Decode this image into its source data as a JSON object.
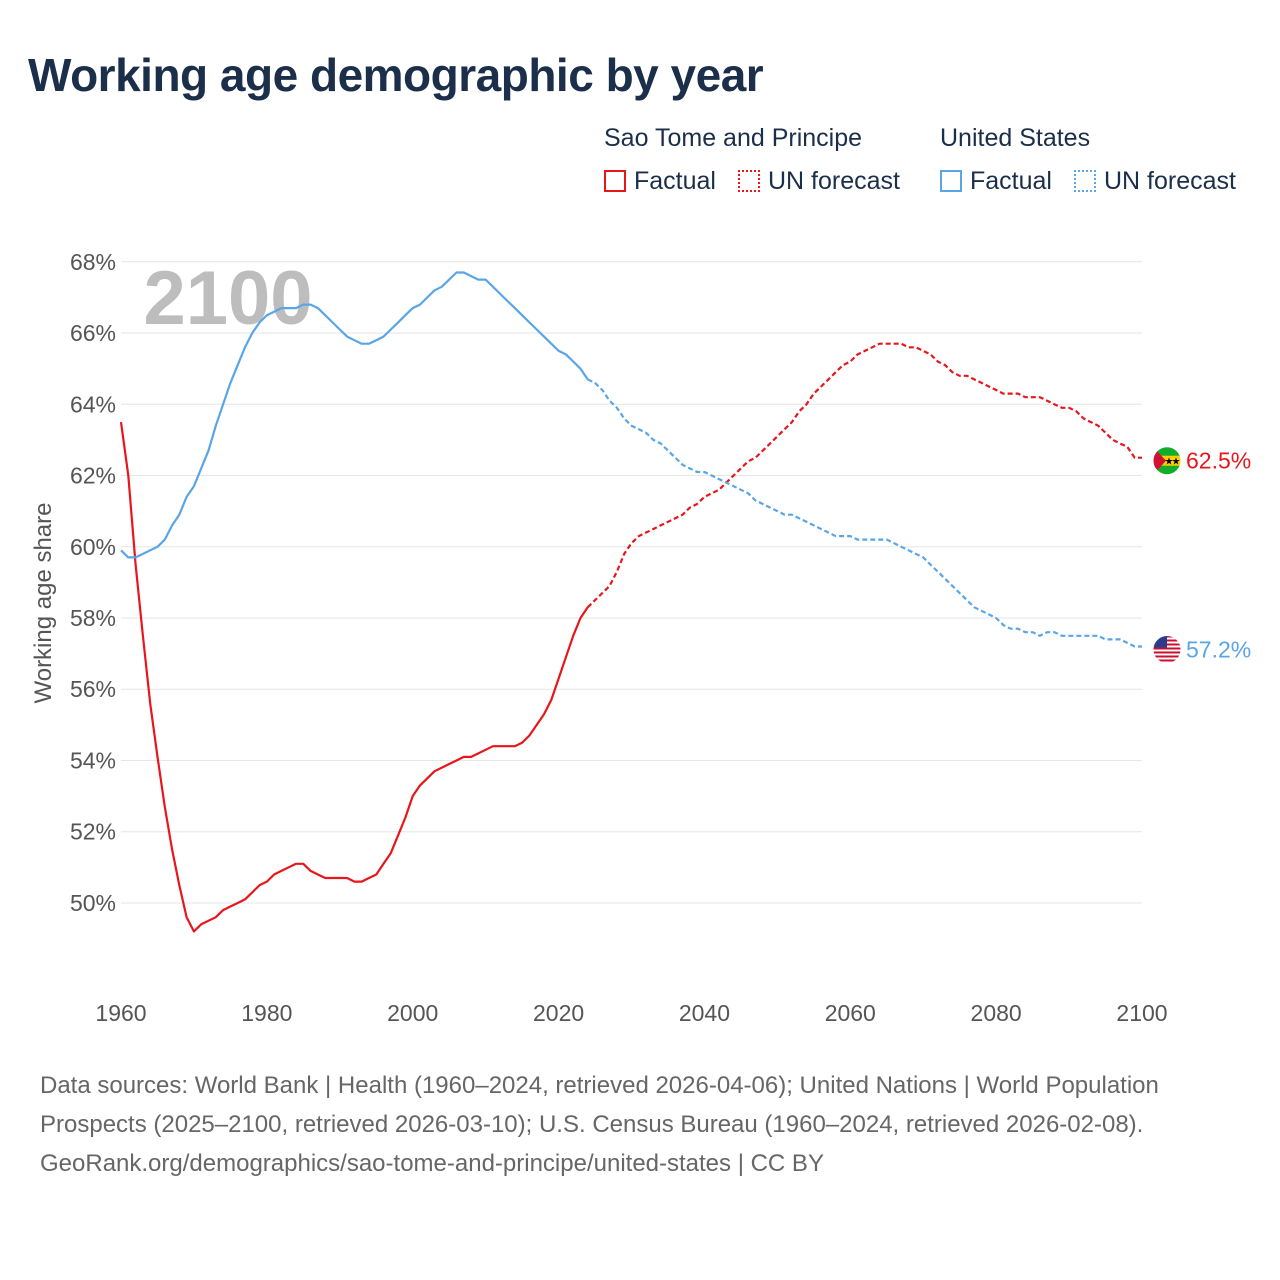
{
  "title": "Working age demographic by year",
  "legend": {
    "groups": [
      {
        "name": "Sao Tome and Principe",
        "color": "#e8161b",
        "factual_label": "Factual",
        "forecast_label": "UN forecast"
      },
      {
        "name": "United States",
        "color": "#5aa5e6",
        "factual_label": "Factual",
        "forecast_label": "UN forecast"
      }
    ]
  },
  "year_watermark": "2100",
  "footer": {
    "sources": "Data sources: World Bank | Health (1960–2024, retrieved 2026-04-06); United Nations | World Population Prospects (2025–2100, retrieved 2026-03-10); U.S. Census Bureau (1960–2024, retrieved 2026-02-08).",
    "link": "GeoRank.org/demographics/sao-tome-and-principe/united-states | CC BY"
  },
  "chart_data": {
    "type": "line",
    "title": "Working age demographic by year",
    "xlabel": "",
    "ylabel": "Working age share",
    "xlim": [
      1960,
      2100
    ],
    "ylim": [
      47.5,
      68.5
    ],
    "x_ticks": [
      1960,
      1980,
      2000,
      2020,
      2040,
      2060,
      2080,
      2100
    ],
    "y_ticks": [
      50,
      52,
      54,
      56,
      58,
      60,
      62,
      64,
      66,
      68
    ],
    "y_tick_suffix": "%",
    "grid": true,
    "factual_end_year": 2024,
    "series": [
      {
        "name": "Sao Tome and Principe",
        "color": "#e8161b",
        "end_label": "62.5%",
        "flag": "sao-tome-and-principe-flag",
        "points": [
          [
            1960,
            63.5
          ],
          [
            1961,
            62.0
          ],
          [
            1962,
            59.5
          ],
          [
            1963,
            57.5
          ],
          [
            1964,
            55.6
          ],
          [
            1965,
            54.1
          ],
          [
            1966,
            52.7
          ],
          [
            1967,
            51.5
          ],
          [
            1968,
            50.5
          ],
          [
            1969,
            49.6
          ],
          [
            1970,
            49.2
          ],
          [
            1971,
            49.4
          ],
          [
            1972,
            49.5
          ],
          [
            1973,
            49.6
          ],
          [
            1974,
            49.8
          ],
          [
            1975,
            49.9
          ],
          [
            1976,
            50.0
          ],
          [
            1977,
            50.1
          ],
          [
            1978,
            50.3
          ],
          [
            1979,
            50.5
          ],
          [
            1980,
            50.6
          ],
          [
            1981,
            50.8
          ],
          [
            1982,
            50.9
          ],
          [
            1983,
            51.0
          ],
          [
            1984,
            51.1
          ],
          [
            1985,
            51.1
          ],
          [
            1986,
            50.9
          ],
          [
            1987,
            50.8
          ],
          [
            1988,
            50.7
          ],
          [
            1989,
            50.7
          ],
          [
            1990,
            50.7
          ],
          [
            1991,
            50.7
          ],
          [
            1992,
            50.6
          ],
          [
            1993,
            50.6
          ],
          [
            1994,
            50.7
          ],
          [
            1995,
            50.8
          ],
          [
            1996,
            51.1
          ],
          [
            1997,
            51.4
          ],
          [
            1998,
            51.9
          ],
          [
            1999,
            52.4
          ],
          [
            2000,
            53.0
          ],
          [
            2001,
            53.3
          ],
          [
            2002,
            53.5
          ],
          [
            2003,
            53.7
          ],
          [
            2004,
            53.8
          ],
          [
            2005,
            53.9
          ],
          [
            2006,
            54.0
          ],
          [
            2007,
            54.1
          ],
          [
            2008,
            54.1
          ],
          [
            2009,
            54.2
          ],
          [
            2010,
            54.3
          ],
          [
            2011,
            54.4
          ],
          [
            2012,
            54.4
          ],
          [
            2013,
            54.4
          ],
          [
            2014,
            54.4
          ],
          [
            2015,
            54.5
          ],
          [
            2016,
            54.7
          ],
          [
            2017,
            55.0
          ],
          [
            2018,
            55.3
          ],
          [
            2019,
            55.7
          ],
          [
            2020,
            56.3
          ],
          [
            2021,
            56.9
          ],
          [
            2022,
            57.5
          ],
          [
            2023,
            58.0
          ],
          [
            2024,
            58.3
          ],
          [
            2025,
            58.5
          ],
          [
            2026,
            58.7
          ],
          [
            2027,
            58.9
          ],
          [
            2028,
            59.3
          ],
          [
            2029,
            59.8
          ],
          [
            2030,
            60.1
          ],
          [
            2031,
            60.3
          ],
          [
            2032,
            60.4
          ],
          [
            2033,
            60.5
          ],
          [
            2034,
            60.6
          ],
          [
            2035,
            60.7
          ],
          [
            2036,
            60.8
          ],
          [
            2037,
            60.9
          ],
          [
            2038,
            61.1
          ],
          [
            2039,
            61.2
          ],
          [
            2040,
            61.4
          ],
          [
            2041,
            61.5
          ],
          [
            2042,
            61.6
          ],
          [
            2043,
            61.8
          ],
          [
            2044,
            62.0
          ],
          [
            2045,
            62.2
          ],
          [
            2046,
            62.4
          ],
          [
            2047,
            62.5
          ],
          [
            2048,
            62.7
          ],
          [
            2049,
            62.9
          ],
          [
            2050,
            63.1
          ],
          [
            2051,
            63.3
          ],
          [
            2052,
            63.5
          ],
          [
            2053,
            63.8
          ],
          [
            2054,
            64.0
          ],
          [
            2055,
            64.3
          ],
          [
            2056,
            64.5
          ],
          [
            2057,
            64.7
          ],
          [
            2058,
            64.9
          ],
          [
            2059,
            65.1
          ],
          [
            2060,
            65.2
          ],
          [
            2061,
            65.4
          ],
          [
            2062,
            65.5
          ],
          [
            2063,
            65.6
          ],
          [
            2064,
            65.7
          ],
          [
            2065,
            65.7
          ],
          [
            2066,
            65.7
          ],
          [
            2067,
            65.7
          ],
          [
            2068,
            65.6
          ],
          [
            2069,
            65.6
          ],
          [
            2070,
            65.5
          ],
          [
            2071,
            65.4
          ],
          [
            2072,
            65.2
          ],
          [
            2073,
            65.1
          ],
          [
            2074,
            64.9
          ],
          [
            2075,
            64.8
          ],
          [
            2076,
            64.8
          ],
          [
            2077,
            64.7
          ],
          [
            2078,
            64.6
          ],
          [
            2079,
            64.5
          ],
          [
            2080,
            64.4
          ],
          [
            2081,
            64.3
          ],
          [
            2082,
            64.3
          ],
          [
            2083,
            64.3
          ],
          [
            2084,
            64.2
          ],
          [
            2085,
            64.2
          ],
          [
            2086,
            64.2
          ],
          [
            2087,
            64.1
          ],
          [
            2088,
            64.0
          ],
          [
            2089,
            63.9
          ],
          [
            2090,
            63.9
          ],
          [
            2091,
            63.8
          ],
          [
            2092,
            63.6
          ],
          [
            2093,
            63.5
          ],
          [
            2094,
            63.4
          ],
          [
            2095,
            63.2
          ],
          [
            2096,
            63.0
          ],
          [
            2097,
            62.9
          ],
          [
            2098,
            62.8
          ],
          [
            2099,
            62.5
          ],
          [
            2100,
            62.5
          ]
        ]
      },
      {
        "name": "United States",
        "color": "#5aa5e6",
        "end_label": "57.2%",
        "flag": "united-states-flag",
        "points": [
          [
            1960,
            59.9
          ],
          [
            1961,
            59.7
          ],
          [
            1962,
            59.7
          ],
          [
            1963,
            59.8
          ],
          [
            1964,
            59.9
          ],
          [
            1965,
            60.0
          ],
          [
            1966,
            60.2
          ],
          [
            1967,
            60.6
          ],
          [
            1968,
            60.9
          ],
          [
            1969,
            61.4
          ],
          [
            1970,
            61.7
          ],
          [
            1971,
            62.2
          ],
          [
            1972,
            62.7
          ],
          [
            1973,
            63.4
          ],
          [
            1974,
            64.0
          ],
          [
            1975,
            64.6
          ],
          [
            1976,
            65.1
          ],
          [
            1977,
            65.6
          ],
          [
            1978,
            66.0
          ],
          [
            1979,
            66.3
          ],
          [
            1980,
            66.5
          ],
          [
            1981,
            66.6
          ],
          [
            1982,
            66.7
          ],
          [
            1983,
            66.7
          ],
          [
            1984,
            66.7
          ],
          [
            1985,
            66.8
          ],
          [
            1986,
            66.8
          ],
          [
            1987,
            66.7
          ],
          [
            1988,
            66.5
          ],
          [
            1989,
            66.3
          ],
          [
            1990,
            66.1
          ],
          [
            1991,
            65.9
          ],
          [
            1992,
            65.8
          ],
          [
            1993,
            65.7
          ],
          [
            1994,
            65.7
          ],
          [
            1995,
            65.8
          ],
          [
            1996,
            65.9
          ],
          [
            1997,
            66.1
          ],
          [
            1998,
            66.3
          ],
          [
            1999,
            66.5
          ],
          [
            2000,
            66.7
          ],
          [
            2001,
            66.8
          ],
          [
            2002,
            67.0
          ],
          [
            2003,
            67.2
          ],
          [
            2004,
            67.3
          ],
          [
            2005,
            67.5
          ],
          [
            2006,
            67.7
          ],
          [
            2007,
            67.7
          ],
          [
            2008,
            67.6
          ],
          [
            2009,
            67.5
          ],
          [
            2010,
            67.5
          ],
          [
            2011,
            67.3
          ],
          [
            2012,
            67.1
          ],
          [
            2013,
            66.9
          ],
          [
            2014,
            66.7
          ],
          [
            2015,
            66.5
          ],
          [
            2016,
            66.3
          ],
          [
            2017,
            66.1
          ],
          [
            2018,
            65.9
          ],
          [
            2019,
            65.7
          ],
          [
            2020,
            65.5
          ],
          [
            2021,
            65.4
          ],
          [
            2022,
            65.2
          ],
          [
            2023,
            65.0
          ],
          [
            2024,
            64.7
          ],
          [
            2025,
            64.6
          ],
          [
            2026,
            64.4
          ],
          [
            2027,
            64.1
          ],
          [
            2028,
            63.9
          ],
          [
            2029,
            63.6
          ],
          [
            2030,
            63.4
          ],
          [
            2031,
            63.3
          ],
          [
            2032,
            63.2
          ],
          [
            2033,
            63.0
          ],
          [
            2034,
            62.9
          ],
          [
            2035,
            62.7
          ],
          [
            2036,
            62.5
          ],
          [
            2037,
            62.3
          ],
          [
            2038,
            62.2
          ],
          [
            2039,
            62.1
          ],
          [
            2040,
            62.1
          ],
          [
            2041,
            62.0
          ],
          [
            2042,
            61.9
          ],
          [
            2043,
            61.8
          ],
          [
            2044,
            61.7
          ],
          [
            2045,
            61.6
          ],
          [
            2046,
            61.5
          ],
          [
            2047,
            61.3
          ],
          [
            2048,
            61.2
          ],
          [
            2049,
            61.1
          ],
          [
            2050,
            61.0
          ],
          [
            2051,
            60.9
          ],
          [
            2052,
            60.9
          ],
          [
            2053,
            60.8
          ],
          [
            2054,
            60.7
          ],
          [
            2055,
            60.6
          ],
          [
            2056,
            60.5
          ],
          [
            2057,
            60.4
          ],
          [
            2058,
            60.3
          ],
          [
            2059,
            60.3
          ],
          [
            2060,
            60.3
          ],
          [
            2061,
            60.2
          ],
          [
            2062,
            60.2
          ],
          [
            2063,
            60.2
          ],
          [
            2064,
            60.2
          ],
          [
            2065,
            60.2
          ],
          [
            2066,
            60.1
          ],
          [
            2067,
            60.0
          ],
          [
            2068,
            59.9
          ],
          [
            2069,
            59.8
          ],
          [
            2070,
            59.7
          ],
          [
            2071,
            59.5
          ],
          [
            2072,
            59.3
          ],
          [
            2073,
            59.1
          ],
          [
            2074,
            58.9
          ],
          [
            2075,
            58.7
          ],
          [
            2076,
            58.5
          ],
          [
            2077,
            58.3
          ],
          [
            2078,
            58.2
          ],
          [
            2079,
            58.1
          ],
          [
            2080,
            58.0
          ],
          [
            2081,
            57.8
          ],
          [
            2082,
            57.7
          ],
          [
            2083,
            57.7
          ],
          [
            2084,
            57.6
          ],
          [
            2085,
            57.6
          ],
          [
            2086,
            57.5
          ],
          [
            2087,
            57.6
          ],
          [
            2088,
            57.6
          ],
          [
            2089,
            57.5
          ],
          [
            2090,
            57.5
          ],
          [
            2091,
            57.5
          ],
          [
            2092,
            57.5
          ],
          [
            2093,
            57.5
          ],
          [
            2094,
            57.5
          ],
          [
            2095,
            57.4
          ],
          [
            2096,
            57.4
          ],
          [
            2097,
            57.4
          ],
          [
            2098,
            57.3
          ],
          [
            2099,
            57.2
          ],
          [
            2100,
            57.2
          ]
        ]
      }
    ]
  }
}
